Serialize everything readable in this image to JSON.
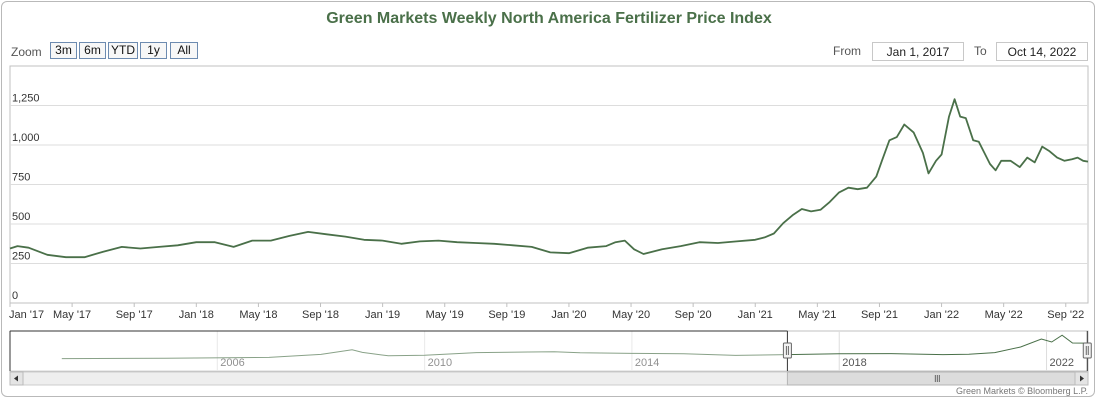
{
  "chart_data": {
    "type": "line",
    "title": "Green Markets Weekly North America Fertilizer Price Index",
    "y_ticks": [
      0,
      250,
      500,
      750,
      1000,
      1250
    ],
    "y_tick_labels": [
      "0",
      "250",
      "500",
      "750",
      "1,000",
      "1,250"
    ],
    "ylim": [
      0,
      1500
    ],
    "x_tick_labels": [
      "Jan '17",
      "May '17",
      "Sep '17",
      "Jan '18",
      "May '18",
      "Sep '18",
      "Jan '19",
      "May '19",
      "Sep '19",
      "Jan '20",
      "May '20",
      "Sep '20",
      "Jan '21",
      "May '21",
      "Sep '21",
      "Jan '22",
      "May '22",
      "Sep '22"
    ],
    "x_range": [
      2017.0,
      2022.786
    ],
    "series": [
      {
        "name": "Green Markets Weekly North America Fertilizer Price Index",
        "x": [
          2017.0,
          2017.04,
          2017.1,
          2017.2,
          2017.3,
          2017.4,
          2017.5,
          2017.6,
          2017.7,
          2017.8,
          2017.9,
          2018.0,
          2018.1,
          2018.2,
          2018.3,
          2018.4,
          2018.5,
          2018.6,
          2018.7,
          2018.8,
          2018.9,
          2019.0,
          2019.1,
          2019.2,
          2019.3,
          2019.4,
          2019.5,
          2019.6,
          2019.7,
          2019.8,
          2019.9,
          2020.0,
          2020.1,
          2020.2,
          2020.25,
          2020.3,
          2020.35,
          2020.4,
          2020.5,
          2020.6,
          2020.7,
          2020.8,
          2020.9,
          2021.0,
          2021.05,
          2021.1,
          2021.15,
          2021.2,
          2021.25,
          2021.3,
          2021.35,
          2021.4,
          2021.45,
          2021.5,
          2021.55,
          2021.6,
          2021.65,
          2021.68,
          2021.72,
          2021.76,
          2021.8,
          2021.85,
          2021.9,
          2021.93,
          2021.97,
          2022.0,
          2022.04,
          2022.07,
          2022.1,
          2022.13,
          2022.17,
          2022.2,
          2022.23,
          2022.26,
          2022.29,
          2022.32,
          2022.37,
          2022.42,
          2022.46,
          2022.5,
          2022.54,
          2022.58,
          2022.62,
          2022.66,
          2022.7,
          2022.73,
          2022.76,
          2022.786
        ],
        "values": [
          345,
          360,
          350,
          305,
          290,
          290,
          325,
          355,
          345,
          355,
          365,
          385,
          385,
          355,
          395,
          395,
          425,
          450,
          435,
          420,
          400,
          395,
          375,
          390,
          395,
          385,
          380,
          375,
          365,
          355,
          320,
          315,
          350,
          360,
          385,
          395,
          340,
          310,
          340,
          360,
          385,
          380,
          390,
          400,
          415,
          440,
          505,
          555,
          595,
          580,
          590,
          640,
          700,
          730,
          720,
          730,
          800,
          900,
          1030,
          1050,
          1130,
          1080,
          950,
          820,
          900,
          940,
          1180,
          1290,
          1180,
          1170,
          1030,
          1020,
          950,
          880,
          840,
          900,
          900,
          860,
          920,
          890,
          990,
          960,
          920,
          900,
          910,
          920,
          900,
          895
        ]
      }
    ],
    "navigator": {
      "labels": [
        "2006",
        "2010",
        "2014",
        "2018",
        "2022"
      ]
    }
  },
  "zoom": {
    "label": "Zoom",
    "buttons": [
      "3m",
      "6m",
      "YTD",
      "1y",
      "All"
    ]
  },
  "range": {
    "from_label": "From",
    "from_value": "Jan 1, 2017",
    "to_label": "To",
    "to_value": "Oct 14, 2022"
  },
  "colors": {
    "line": "#4a7049",
    "title": "#4a7049",
    "grid": "#dddddd"
  },
  "credit": "Green Markets © Bloomberg L.P."
}
